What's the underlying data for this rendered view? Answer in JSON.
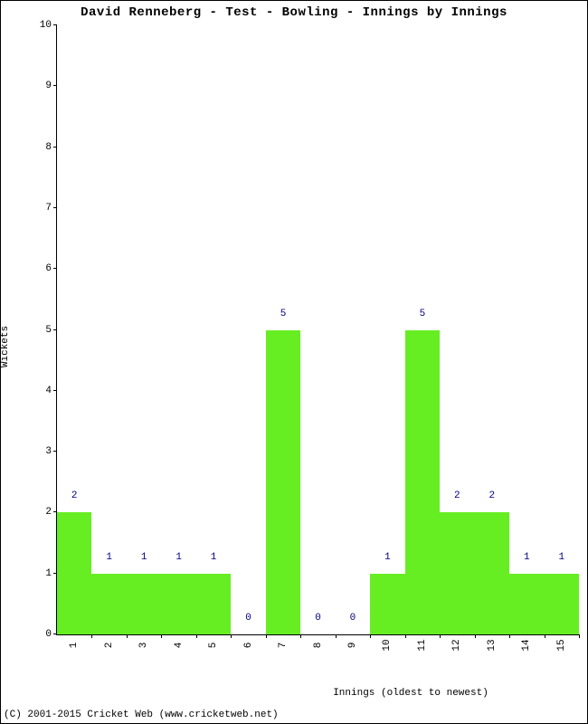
{
  "title": "David Renneberg - Test - Bowling - Innings by Innings",
  "copyright": "(C) 2001-2015 Cricket Web (www.cricketweb.net)",
  "chart": {
    "type": "bar",
    "xlabel": "Innings (oldest to newest)",
    "ylabel": "Wickets",
    "ylim": [
      0,
      10
    ],
    "ytick_step": 1,
    "categories": [
      "1",
      "2",
      "3",
      "4",
      "5",
      "6",
      "7",
      "8",
      "9",
      "10",
      "11",
      "12",
      "13",
      "14",
      "15"
    ],
    "values": [
      2,
      1,
      1,
      1,
      1,
      0,
      5,
      0,
      0,
      1,
      5,
      2,
      2,
      1,
      1
    ],
    "bar_color": "#66ee22",
    "bar_width": 1.0,
    "value_label_color": "#000080",
    "background_color": "#ffffff",
    "axis_color": "#000000",
    "label_fontsize": 11,
    "title_fontsize": 14
  }
}
